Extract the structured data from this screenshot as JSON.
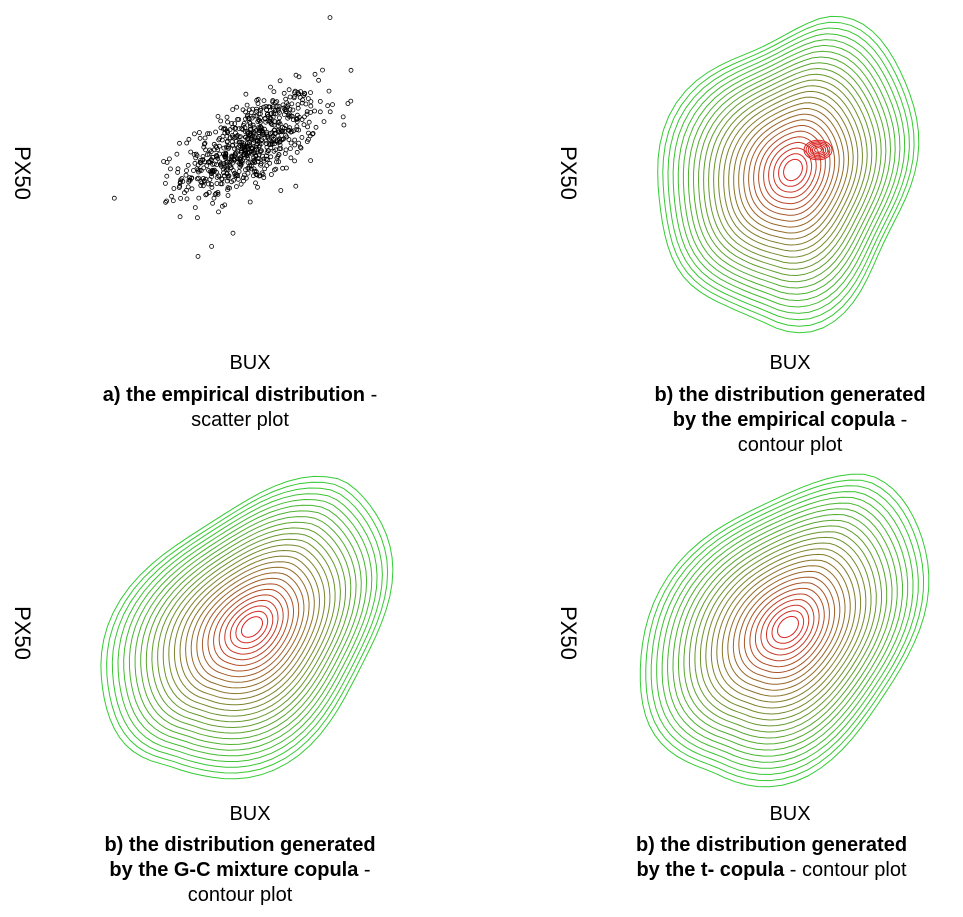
{
  "colors": {
    "outer": "#33cc33",
    "inner": "#dd2222",
    "points": "#000000"
  },
  "panels": [
    {
      "id": "a",
      "xlabel": "BUX",
      "ylabel": "PX50",
      "caption_bold_1": "a) the empirical distribution",
      "caption_dash": " -",
      "caption_line2": "scatter plot",
      "chart_kind": "scatter"
    },
    {
      "id": "b1",
      "xlabel": "BUX",
      "ylabel": "PX50",
      "caption_bold_1": "b) the distribution generated",
      "caption_bold_2": "by the empirical copula",
      "caption_dash": " -",
      "caption_line3": "contour plot",
      "chart_kind": "contour"
    },
    {
      "id": "b2",
      "xlabel": "BUX",
      "ylabel": "PX50",
      "caption_bold_1": "b) the distribution generated",
      "caption_bold_2": "by the G-C mixture copula",
      "caption_dash": " -",
      "caption_line3": "contour plot",
      "chart_kind": "contour"
    },
    {
      "id": "b3",
      "xlabel": "BUX",
      "ylabel": "PX50",
      "caption_bold_1": "b) the distribution generated",
      "caption_bold_2": "by the t- copula",
      "caption_tail": " - contour plot",
      "chart_kind": "contour"
    }
  ],
  "chart_data": [
    {
      "type": "scatter",
      "title": "",
      "xlabel": "BUX",
      "ylabel": "PX50",
      "description_values": "approx. 700 points, bivariate cloud with positive correlation",
      "outliers": [
        [
          -2.6,
          -1.2
        ],
        [
          -2.1,
          -1.4
        ],
        [
          -1.2,
          -3.9
        ],
        [
          2.5,
          4.9
        ],
        [
          -1.0,
          1.1
        ]
      ]
    },
    {
      "type": "contour",
      "title": "",
      "xlabel": "BUX",
      "ylabel": "PX50",
      "levels": 26,
      "peaks": [
        [
          -0.3,
          0.5
        ],
        [
          0.5,
          0.9
        ]
      ]
    },
    {
      "type": "contour",
      "title": "",
      "xlabel": "BUX",
      "ylabel": "PX50",
      "levels": 26,
      "peaks": [
        [
          0.0,
          0.0
        ]
      ]
    },
    {
      "type": "contour",
      "title": "",
      "xlabel": "BUX",
      "ylabel": "PX50",
      "levels": 26,
      "peaks": [
        [
          0.0,
          0.0
        ]
      ]
    }
  ]
}
